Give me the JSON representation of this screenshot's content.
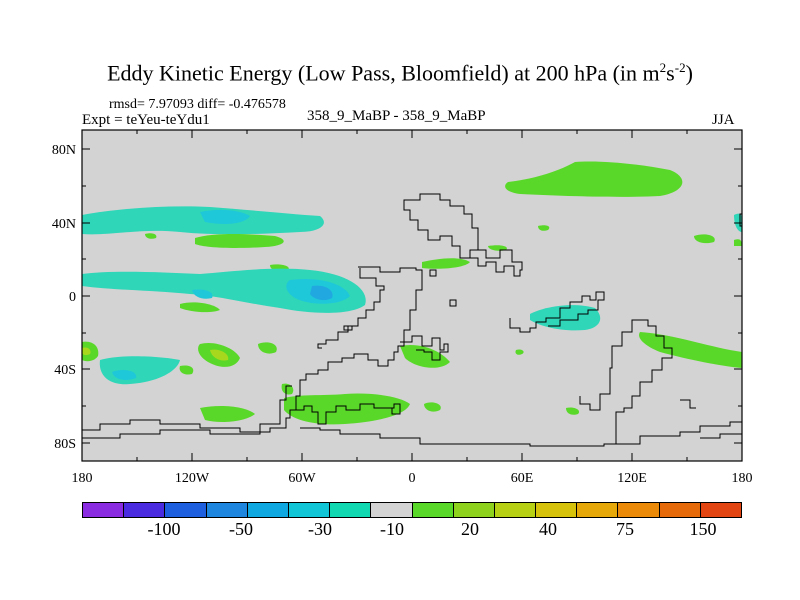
{
  "title": {
    "main": "Eddy Kinetic Energy (Low Pass, Bloomfield) at 200 hPa (in m",
    "sup1": "2",
    "mid": "s",
    "sup2": "-2",
    "end": ")"
  },
  "header": {
    "rmsd": "rmsd= 7.97093 diff= -0.476578",
    "expt": "Expt = teYeu-teYdu1",
    "cases": "358_9_MaBP - 358_9_MaBP",
    "season": "JJA"
  },
  "axes": {
    "y_ticks": [
      "80N",
      "40N",
      "0",
      "40S",
      "80S"
    ],
    "x_ticks": [
      "180",
      "120W",
      "60W",
      "0",
      "60E",
      "120E",
      "180"
    ]
  },
  "colorbar": {
    "colors": [
      "#8a2be2",
      "#4b2be0",
      "#1e5fe0",
      "#1f86e0",
      "#10a8e0",
      "#0fc5d6",
      "#10d8b0",
      "#d3d3d3",
      "#5ad82a",
      "#8ed21e",
      "#b8d014",
      "#d6c20a",
      "#e6a808",
      "#ea8a08",
      "#e66a0a",
      "#e24412"
    ],
    "labels": [
      "-100",
      "-50",
      "-30",
      "-10",
      "20",
      "40",
      "75",
      "150"
    ]
  },
  "map_colors": {
    "background": "#d3d3d3",
    "teal": "#2fd6b8",
    "cyan": "#1fc8d8",
    "blue": "#22a8e0",
    "green": "#5ad82a",
    "yellowgreen": "#a8d81e"
  }
}
